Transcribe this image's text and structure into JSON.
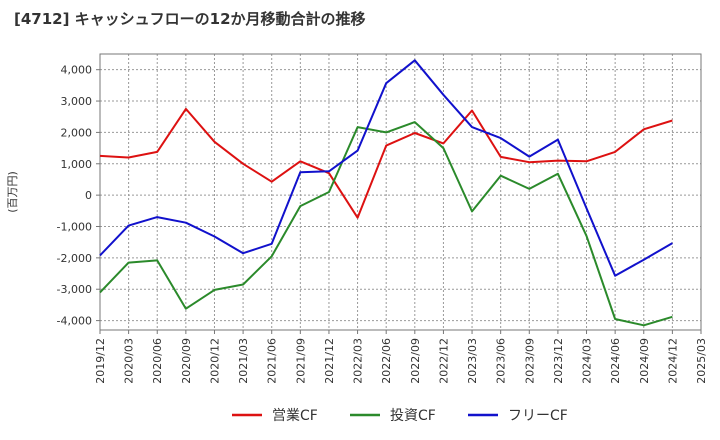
{
  "chart_data": {
    "type": "line",
    "title": "[4712]  キャッシュフローの12か月移動合計の推移",
    "ylabel": "(百万円)",
    "xlabel": "",
    "ylim": [
      -4300,
      4500
    ],
    "yticks": [
      4000,
      3000,
      2000,
      1000,
      0,
      -1000,
      -2000,
      -3000,
      -4000
    ],
    "ytick_labels": [
      "4,000",
      "3,000",
      "2,000",
      "1,000",
      "0",
      "-1,000",
      "-2,000",
      "-3,000",
      "-4,000"
    ],
    "xtick_labels": [
      "2019/12",
      "2020/03",
      "2020/06",
      "2020/09",
      "2020/12",
      "2021/03",
      "2021/06",
      "2021/09",
      "2021/12",
      "2022/03",
      "2022/06",
      "2022/09",
      "2022/12",
      "2023/03",
      "2023/06",
      "2023/09",
      "2023/12",
      "2024/03",
      "2024/06",
      "2024/09",
      "2024/12",
      "2025/03"
    ],
    "categories": [
      "2019/12",
      "2020/03",
      "2020/06",
      "2020/09",
      "2020/12",
      "2021/03",
      "2021/06",
      "2021/09",
      "2021/12",
      "2022/03",
      "2022/06",
      "2022/09",
      "2022/12",
      "2023/03",
      "2023/06",
      "2023/09",
      "2023/12",
      "2024/03",
      "2024/06",
      "2024/09",
      "2024/12"
    ],
    "grid": true,
    "legend_position": "bottom",
    "series": [
      {
        "name": "営業CF",
        "color": "#dd1111",
        "values": [
          1250,
          1200,
          1380,
          2750,
          1700,
          1000,
          430,
          1080,
          700,
          -720,
          1580,
          1980,
          1650,
          2700,
          1220,
          1050,
          1100,
          1080,
          1380,
          2100,
          2380
        ]
      },
      {
        "name": "投資CF",
        "color": "#2b8a2b",
        "values": [
          -3100,
          -2150,
          -2080,
          -3620,
          -3020,
          -2850,
          -1950,
          -350,
          100,
          2170,
          2000,
          2330,
          1500,
          -520,
          620,
          200,
          680,
          -1300,
          -3950,
          -4150,
          -3880
        ]
      },
      {
        "name": "フリーCF",
        "color": "#1111cc",
        "values": [
          -1920,
          -970,
          -700,
          -880,
          -1320,
          -1850,
          -1550,
          730,
          760,
          1420,
          3570,
          4300,
          3200,
          2170,
          1820,
          1230,
          1770,
          -420,
          -2570,
          -2060,
          -1530
        ]
      }
    ]
  }
}
